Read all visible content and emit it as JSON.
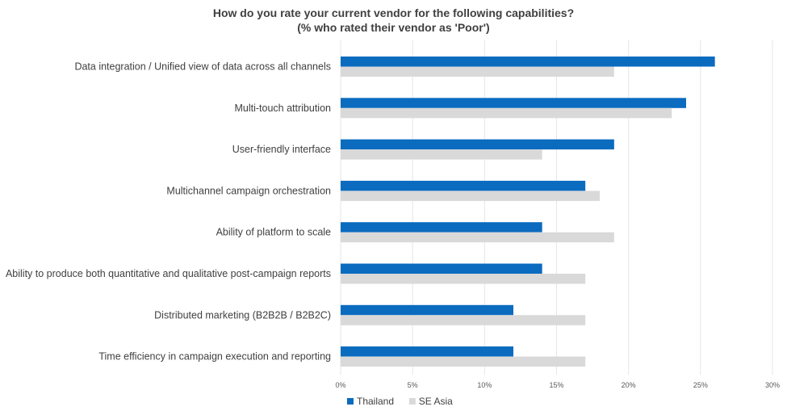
{
  "chart_data": {
    "type": "bar",
    "orientation": "horizontal",
    "title": "How do you rate your current vendor for the following capabilities?",
    "subtitle": "(% who rated their vendor as 'Poor')",
    "categories": [
      "Data integration / Unified view of data across all channels",
      "Multi-touch attribution",
      "User-friendly interface",
      "Multichannel campaign orchestration",
      "Ability of platform to scale",
      "Ability to produce both quantitative and qualitative post-campaign reports",
      "Distributed marketing (B2B2B / B2B2C)",
      "Time efficiency in campaign execution and reporting"
    ],
    "series": [
      {
        "name": "Thailand",
        "color": "#0a6bbf",
        "values": [
          26,
          24,
          19,
          17,
          14,
          14,
          12,
          12
        ]
      },
      {
        "name": "SE Asia",
        "color": "#d9d9d9",
        "values": [
          19,
          23,
          14,
          18,
          19,
          17,
          17,
          17
        ]
      }
    ],
    "xlim": [
      0,
      30
    ],
    "xticks": [
      0,
      5,
      10,
      15,
      20,
      25,
      30
    ],
    "xtick_labels": [
      "0%",
      "5%",
      "10%",
      "15%",
      "20%",
      "25%",
      "30%"
    ],
    "grid": "vertical",
    "legend": "bottom-left"
  }
}
